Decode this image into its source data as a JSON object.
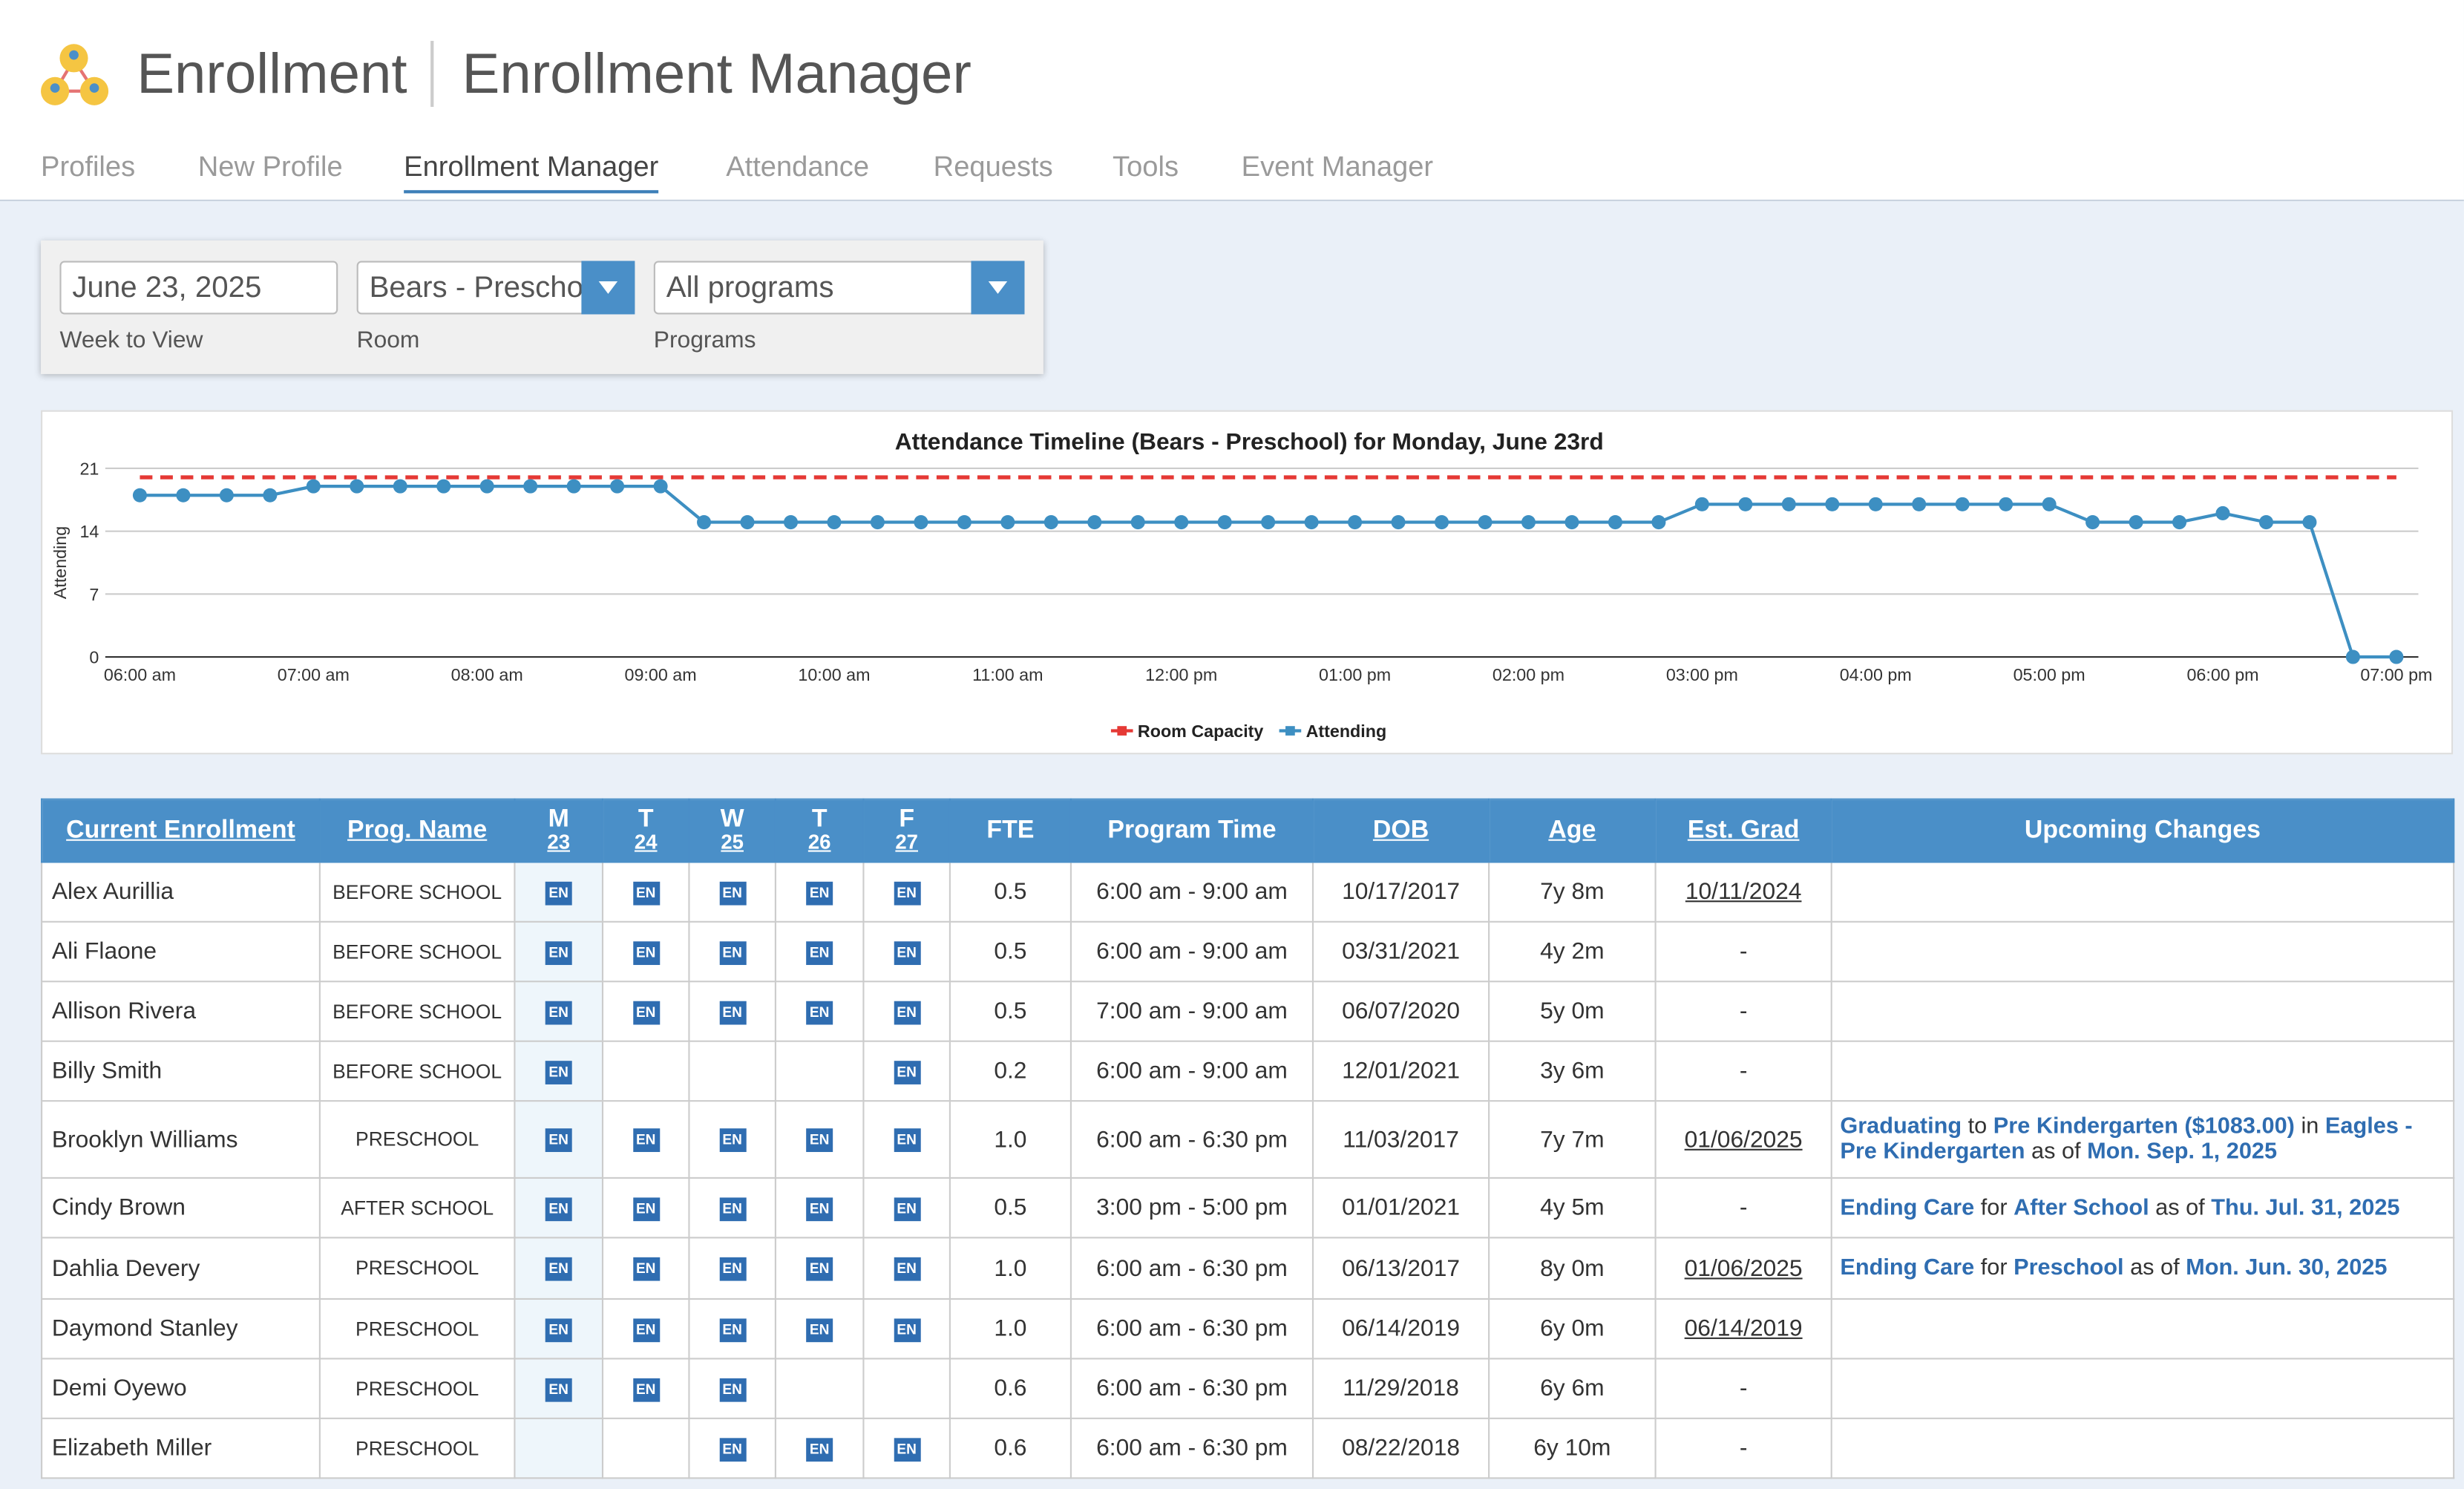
{
  "header": {
    "app": "Enrollment",
    "title": "Enrollment Manager"
  },
  "tabs": [
    "Profiles",
    "New Profile",
    "Enrollment Manager",
    "Attendance",
    "Requests",
    "Tools",
    "Event Manager"
  ],
  "active_tab": 2,
  "filters": [
    {
      "value": "June 23, 2025",
      "label": "Week to View"
    },
    {
      "value": "Bears - Preschool",
      "label": "Room"
    },
    {
      "value": "All programs",
      "label": "Programs"
    }
  ],
  "chart_data": {
    "type": "line",
    "title": "Attendance Timeline (Bears - Preschool) for Monday, June 23rd",
    "y_label": "Attending",
    "categories": [
      "06:00 am",
      null,
      null,
      null,
      "07:00 am",
      null,
      null,
      null,
      "08:00 am",
      null,
      null,
      null,
      "09:00 am",
      null,
      null,
      null,
      "10:00 am",
      null,
      null,
      null,
      "11:00 am",
      null,
      null,
      null,
      "12:00 pm",
      null,
      null,
      null,
      "01:00 pm",
      null,
      null,
      null,
      "02:00 pm",
      null,
      null,
      null,
      "03:00 pm",
      null,
      null,
      null,
      "04:00 pm",
      null,
      null,
      null,
      "05:00 pm",
      null,
      null,
      null,
      "06:00 pm",
      null,
      null,
      null,
      "07:00 pm"
    ],
    "series": [
      {
        "name": "Room Capacity",
        "color": "#e53935",
        "dashed": true,
        "values": [
          20,
          20,
          20,
          20,
          20,
          20,
          20,
          20,
          20,
          20,
          20,
          20,
          20,
          20,
          20,
          20,
          20,
          20,
          20,
          20,
          20,
          20,
          20,
          20,
          20,
          20,
          20,
          20,
          20,
          20,
          20,
          20,
          20,
          20,
          20,
          20,
          20,
          20,
          20,
          20,
          20,
          20,
          20,
          20,
          20,
          20,
          20,
          20,
          20,
          20,
          20,
          20,
          20
        ]
      },
      {
        "name": "Attending",
        "color": "#3d8fc2",
        "dashed": false,
        "values": [
          18,
          18,
          18,
          18,
          19,
          19,
          19,
          19,
          19,
          19,
          19,
          19,
          19,
          15,
          15,
          15,
          15,
          15,
          15,
          15,
          15,
          15,
          15,
          15,
          15,
          15,
          15,
          15,
          15,
          15,
          15,
          15,
          15,
          15,
          15,
          15,
          17,
          17,
          17,
          17,
          17,
          17,
          17,
          17,
          17,
          15,
          15,
          15,
          16,
          15,
          15,
          0,
          0
        ]
      }
    ],
    "ylim": [
      0,
      21
    ],
    "yticks": [
      0,
      7,
      14,
      21
    ],
    "grid": true,
    "legend": "bottom"
  },
  "table": {
    "columns": [
      "Current Enrollment",
      "Prog. Name",
      {
        "day": "M",
        "date": "23"
      },
      {
        "day": "T",
        "date": "24"
      },
      {
        "day": "W",
        "date": "25"
      },
      {
        "day": "T",
        "date": "26"
      },
      {
        "day": "F",
        "date": "27"
      },
      "FTE",
      "Program Time",
      "DOB",
      "Age",
      "Est. Grad",
      "Upcoming Changes"
    ],
    "rows": [
      {
        "name": "Alex Aurillia",
        "program": "BEFORE SCHOOL",
        "days": [
          "EN",
          "EN",
          "EN",
          "EN",
          "EN"
        ],
        "fte": "0.5",
        "time": "6:00 am - 9:00 am",
        "dob": "10/17/2017",
        "age": "7y 8m",
        "grad": "10/11/2024",
        "changes": []
      },
      {
        "name": "Ali Flaone",
        "program": "BEFORE SCHOOL",
        "days": [
          "EN",
          "EN",
          "EN",
          "EN",
          "EN"
        ],
        "fte": "0.5",
        "time": "6:00 am - 9:00 am",
        "dob": "03/31/2021",
        "age": "4y 2m",
        "grad": "-",
        "changes": []
      },
      {
        "name": "Allison Rivera",
        "program": "BEFORE SCHOOL",
        "days": [
          "EN",
          "EN",
          "EN",
          "EN",
          "EN"
        ],
        "fte": "0.5",
        "time": "7:00 am - 9:00 am",
        "dob": "06/07/2020",
        "age": "5y 0m",
        "grad": "-",
        "changes": []
      },
      {
        "name": "Billy Smith",
        "program": "BEFORE SCHOOL",
        "days": [
          "EN",
          null,
          null,
          null,
          "EN"
        ],
        "fte": "0.2",
        "time": "6:00 am - 9:00 am",
        "dob": "12/01/2021",
        "age": "3y 6m",
        "grad": "-",
        "changes": []
      },
      {
        "name": "Brooklyn Williams",
        "program": "PRESCHOOL",
        "days": [
          "EN",
          "EN",
          "EN",
          "EN",
          "EN"
        ],
        "fte": "1.0",
        "time": "6:00 am - 6:30 pm",
        "dob": "11/03/2017",
        "age": "7y 7m",
        "grad": "01/06/2025",
        "changes": [
          "Graduating",
          "to",
          "Pre Kindergarten ($1083.00)",
          "in",
          "Eagles - Pre Kindergarten",
          "as of",
          "Mon. Sep. 1, 2025"
        ]
      },
      {
        "name": "Cindy Brown",
        "program": "AFTER SCHOOL",
        "days": [
          "EN",
          "EN",
          "EN",
          "EN",
          "EN"
        ],
        "fte": "0.5",
        "time": "3:00 pm - 5:00 pm",
        "dob": "01/01/2021",
        "age": "4y 5m",
        "grad": "-",
        "changes": [
          "Ending Care",
          "for",
          "After School",
          "as of",
          "Thu. Jul. 31, 2025"
        ]
      },
      {
        "name": "Dahlia Devery",
        "program": "PRESCHOOL",
        "days": [
          "EN",
          "EN",
          "EN",
          "EN",
          "EN"
        ],
        "fte": "1.0",
        "time": "6:00 am - 6:30 pm",
        "dob": "06/13/2017",
        "age": "8y 0m",
        "grad": "01/06/2025",
        "changes": [
          "Ending Care",
          "for",
          "Preschool",
          "as of",
          "Mon. Jun. 30, 2025"
        ]
      },
      {
        "name": "Daymond Stanley",
        "program": "PRESCHOOL",
        "days": [
          "EN",
          "EN",
          "EN",
          "EN",
          "EN"
        ],
        "fte": "1.0",
        "time": "6:00 am - 6:30 pm",
        "dob": "06/14/2019",
        "age": "6y 0m",
        "grad": "06/14/2019",
        "changes": []
      },
      {
        "name": "Demi Oyewo",
        "program": "PRESCHOOL",
        "days": [
          "EN",
          "EN",
          "EN",
          null,
          null
        ],
        "fte": "0.6",
        "time": "6:00 am - 6:30 pm",
        "dob": "11/29/2018",
        "age": "6y 6m",
        "grad": "-",
        "changes": []
      },
      {
        "name": "Elizabeth Miller",
        "program": "PRESCHOOL",
        "days": [
          null,
          null,
          "EN",
          "EN",
          "EN"
        ],
        "fte": "0.6",
        "time": "6:00 am - 6:30 pm",
        "dob": "08/22/2018",
        "age": "6y 10m",
        "grad": "-",
        "changes": []
      }
    ]
  }
}
